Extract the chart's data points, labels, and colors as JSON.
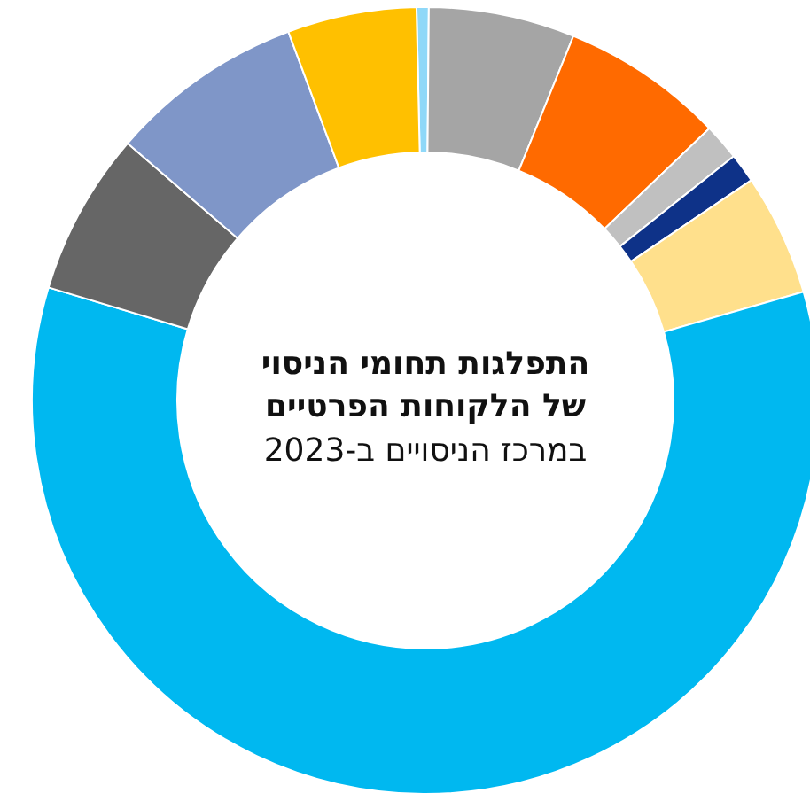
{
  "chart_data": {
    "type": "donut",
    "title": "התפלגות תחומי הניסוי של הלקוחות הפרטיים",
    "subtitle": "במרכז הניסויים ב-2023",
    "categories": [
      null,
      null,
      null,
      null,
      null,
      null,
      null,
      null,
      null,
      null
    ],
    "values": [
      0.5,
      6,
      6.7,
      1.5,
      1.2,
      5,
      59.1,
      6.7,
      8,
      5.3
    ],
    "colors": [
      "#8fd8f8",
      "#a5a5a5",
      "#ff6a00",
      "#c0c0c0",
      "#0e3288",
      "#ffe08c",
      "#00b8f0",
      "#666666",
      "#7f96c8",
      "#ffc000"
    ]
  }
}
